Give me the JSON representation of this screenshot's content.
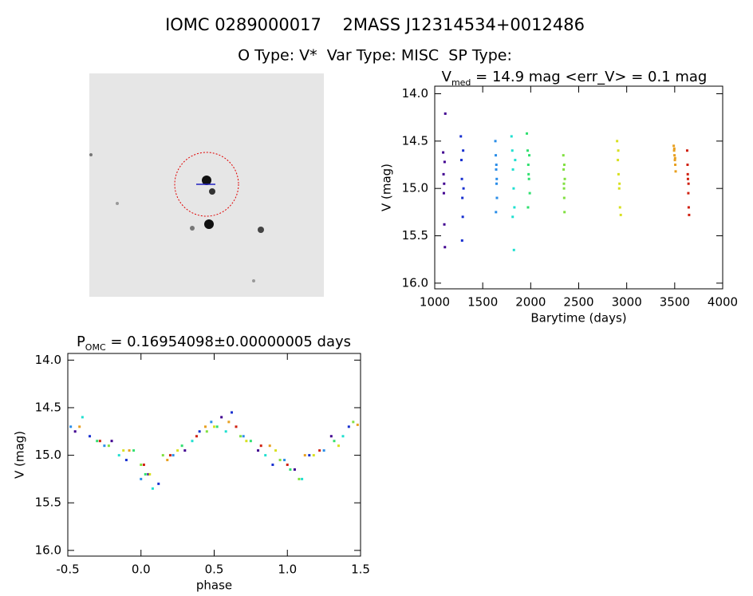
{
  "title": "IOMC 0289000017    2MASS J12314534+0012486",
  "subtitle": "O Type: V*  Var Type: MISC  SP Type:",
  "chart_data": [
    {
      "type": "scatter",
      "title_parts": [
        "V",
        "med",
        " = 14.9 mag <err_V> = 0.1 mag"
      ],
      "xlabel": "Barytime (days)",
      "ylabel": "V (mag)",
      "xlim": [
        1000,
        4000
      ],
      "ylim": [
        16.06,
        13.92
      ],
      "xticks": [
        1000,
        1500,
        2000,
        2500,
        3000,
        3500,
        4000
      ],
      "yticks": [
        {
          "value": 14,
          "label": "14.0"
        },
        14.5,
        {
          "value": 15,
          "label": "15.0"
        },
        15.5,
        {
          "value": 16,
          "label": "16.0"
        }
      ],
      "series": [
        {
          "color": "#400090",
          "x": [
            1088,
            1092,
            1095,
            1098,
            1100,
            1103,
            1106,
            1110
          ],
          "values": [
            14.62,
            14.85,
            15.05,
            14.95,
            15.38,
            14.72,
            15.62,
            14.21
          ]
        },
        {
          "color": "#1830d0",
          "x": [
            1272,
            1278,
            1283,
            1288,
            1292,
            1296,
            1300,
            1285
          ],
          "values": [
            14.45,
            14.7,
            14.9,
            15.1,
            15.3,
            14.6,
            15.0,
            15.55
          ]
        },
        {
          "color": "#2a8de8",
          "x": [
            1632,
            1636,
            1640,
            1644,
            1648,
            1638,
            1642,
            1646
          ],
          "values": [
            14.5,
            14.65,
            14.8,
            14.95,
            15.1,
            15.25,
            14.75,
            14.9
          ]
        },
        {
          "color": "#20e0d0",
          "x": [
            1800,
            1808,
            1815,
            1822,
            1830,
            1838,
            1812,
            1825
          ],
          "values": [
            14.45,
            14.6,
            14.8,
            15.0,
            15.2,
            14.7,
            15.3,
            15.65
          ]
        },
        {
          "color": "#30e070",
          "x": [
            1960,
            1968,
            1975,
            1982,
            1990,
            1972,
            1985,
            1978
          ],
          "values": [
            14.42,
            14.6,
            14.75,
            14.9,
            15.05,
            15.2,
            14.65,
            14.85
          ]
        },
        {
          "color": "#80e040",
          "x": [
            2340,
            2343,
            2346,
            2349,
            2352,
            2355,
            2347,
            2350
          ],
          "values": [
            14.65,
            14.8,
            14.95,
            15.1,
            15.25,
            14.9,
            15.0,
            14.75
          ]
        },
        {
          "color": "#d8e020",
          "x": [
            2900,
            2908,
            2915,
            2922,
            2930,
            2938,
            2912,
            2925
          ],
          "values": [
            14.5,
            14.7,
            14.85,
            15.0,
            15.2,
            15.28,
            14.6,
            14.95
          ]
        },
        {
          "color": "#e8a020",
          "x": [
            3490,
            3494,
            3498,
            3502,
            3506,
            3510,
            3496,
            3504
          ],
          "values": [
            14.55,
            14.6,
            14.65,
            14.7,
            14.75,
            14.82,
            14.58,
            14.68
          ]
        },
        {
          "color": "#d02010",
          "x": [
            3630,
            3634,
            3638,
            3642,
            3646,
            3650,
            3636,
            3644
          ],
          "values": [
            14.6,
            14.75,
            14.9,
            15.05,
            15.2,
            15.28,
            14.85,
            14.95
          ]
        }
      ]
    },
    {
      "type": "scatter",
      "title_parts": [
        "P",
        "OMC",
        " = 0.16954098±0.00000005 days"
      ],
      "xlabel": "phase",
      "ylabel": "V (mag)",
      "xlim": [
        -0.5,
        1.5
      ],
      "ylim": [
        16.06,
        13.93
      ],
      "xticks": [
        -0.5,
        {
          "value": 0,
          "label": "0.0"
        },
        0.5,
        {
          "value": 1,
          "label": "1.0"
        },
        1.5
      ],
      "yticks": [
        {
          "value": 14,
          "label": "14.0"
        },
        14.5,
        {
          "value": 15,
          "label": "15.0"
        },
        15.5,
        {
          "value": 16,
          "label": "16.0"
        }
      ],
      "series": [
        {
          "color": "#400090",
          "x": [
            -0.45,
            -0.2,
            0.05,
            0.3,
            0.55,
            0.8,
            1.05,
            1.3
          ],
          "values": [
            14.75,
            14.85,
            15.2,
            14.95,
            14.6,
            14.95,
            15.15,
            14.8
          ]
        },
        {
          "color": "#1830d0",
          "x": [
            -0.35,
            -0.1,
            0.12,
            0.4,
            0.62,
            0.9,
            1.15,
            1.42
          ],
          "values": [
            14.8,
            15.05,
            15.3,
            14.75,
            14.55,
            15.1,
            15.0,
            14.7
          ]
        },
        {
          "color": "#2a8de8",
          "x": [
            -0.48,
            -0.25,
            0.0,
            0.22,
            0.48,
            0.7,
            0.98,
            1.25
          ],
          "values": [
            14.7,
            14.9,
            15.25,
            15.0,
            14.65,
            14.8,
            15.05,
            14.95
          ]
        },
        {
          "color": "#20e0d0",
          "x": [
            -0.4,
            -0.15,
            0.08,
            0.35,
            0.58,
            0.85,
            1.1,
            1.38
          ],
          "values": [
            14.6,
            15.0,
            15.35,
            14.85,
            14.75,
            15.0,
            15.25,
            14.8
          ]
        },
        {
          "color": "#30e070",
          "x": [
            -0.3,
            -0.05,
            0.03,
            0.28,
            0.52,
            0.75,
            1.02,
            1.32
          ],
          "values": [
            14.85,
            14.95,
            15.2,
            14.9,
            14.7,
            14.85,
            15.15,
            14.85
          ]
        },
        {
          "color": "#80e040",
          "x": [
            -0.22,
            0.0,
            0.15,
            0.45,
            0.68,
            0.95,
            1.08,
            1.45
          ],
          "values": [
            14.9,
            15.1,
            15.0,
            14.75,
            14.8,
            15.05,
            15.25,
            14.65
          ]
        },
        {
          "color": "#d8e020",
          "x": [
            -0.12,
            0.06,
            0.25,
            0.5,
            0.72,
            0.92,
            1.18,
            1.35
          ],
          "values": [
            14.95,
            15.2,
            14.95,
            14.7,
            14.85,
            14.95,
            15.0,
            14.9
          ]
        },
        {
          "color": "#e8a020",
          "x": [
            -0.42,
            -0.08,
            0.18,
            0.44,
            0.6,
            0.88,
            1.12,
            1.48
          ],
          "values": [
            14.7,
            14.95,
            15.05,
            14.7,
            14.65,
            14.9,
            15.0,
            14.68
          ]
        },
        {
          "color": "#d02010",
          "x": [
            -0.28,
            0.02,
            0.2,
            0.38,
            0.65,
            0.82,
            1.0,
            1.22
          ],
          "values": [
            14.85,
            15.1,
            15.0,
            14.8,
            14.7,
            14.9,
            15.1,
            14.95
          ]
        }
      ]
    }
  ]
}
